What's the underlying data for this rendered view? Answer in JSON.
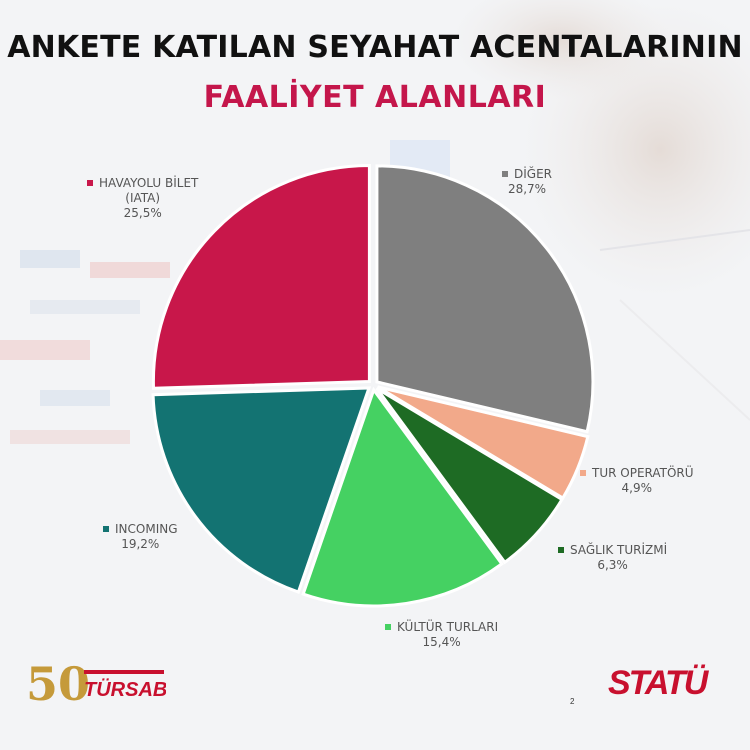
{
  "title_line1": "ANKETE KATILAN SEYAHAT ACENTALARININ",
  "title_line2": "FAALİYET ALANLARI",
  "colors": {
    "accent": "#c4164b",
    "title": "#111111"
  },
  "chart_data": {
    "type": "pie",
    "title": "ANKETE KATILAN SEYAHAT ACENTALARININ FAALİYET ALANLARI",
    "start": "top, clockwise",
    "slices": [
      {
        "label": "DİĞER",
        "value": 28.7,
        "display": "28,7%",
        "color": "#7f7f7f"
      },
      {
        "label": "TUR OPERATÖRÜ",
        "value": 4.9,
        "display": "4,9%",
        "color": "#f2a98a"
      },
      {
        "label": "SAĞLIK TURİZMİ",
        "value": 6.3,
        "display": "6,3%",
        "color": "#1e6b24"
      },
      {
        "label": "KÜLTÜR TURLARI",
        "value": 15.4,
        "display": "15,4%",
        "color": "#45d162"
      },
      {
        "label": "INCOMING",
        "value": 19.2,
        "display": "19,2%",
        "color": "#137372"
      },
      {
        "label": "HAVAYOLU BİLET (IATA)",
        "label_lines": [
          "HAVAYOLU BİLET",
          "(IATA)"
        ],
        "value": 25.5,
        "display": "25,5%",
        "color": "#c8174a"
      }
    ]
  },
  "logos": {
    "tursab_number": "50",
    "tursab_text": "TÜRSAB",
    "statu_text": "STATÜ"
  },
  "page_number": "2"
}
